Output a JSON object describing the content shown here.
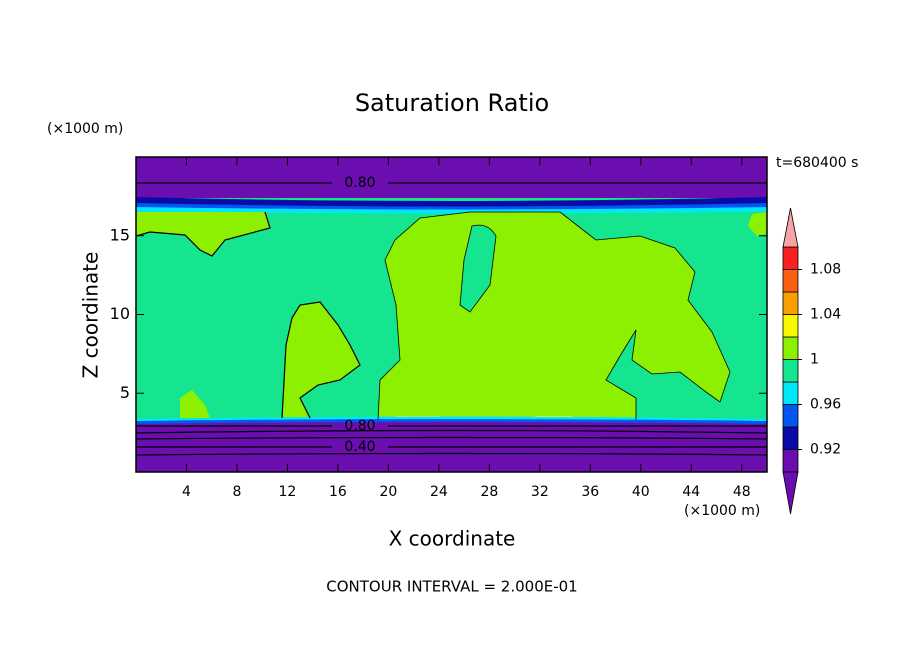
{
  "chart_data": {
    "type": "contour",
    "title": "Saturation Ratio",
    "x_label": "X coordinate",
    "y_label": "Z coordinate",
    "x_unit": "(×1000 m)",
    "y_unit": "(×1000 m)",
    "time_label": "t=680400 s",
    "footer": "CONTOUR INTERVAL = 2.000E-01",
    "xlim": [
      0,
      50
    ],
    "xticks": [
      4,
      8,
      12,
      16,
      20,
      24,
      28,
      32,
      36,
      40,
      44,
      48
    ],
    "ylim": [
      0,
      20
    ],
    "yticks": [
      5,
      10,
      15
    ],
    "contour_labels": [
      {
        "value": 0.8,
        "label": "0.80"
      },
      {
        "value": 0.8,
        "label": "0.80"
      },
      {
        "value": 0.4,
        "label": "0.40"
      }
    ],
    "colorbar": {
      "bounds": [
        0.9,
        1.1
      ],
      "ticks": [
        0.92,
        0.96,
        1,
        1.04,
        1.08
      ],
      "colors": [
        "#6a0eb0",
        "#0a0aa6",
        "#0058f0",
        "#00e8f8",
        "#14e58e",
        "#8cf000",
        "#f8f800",
        "#f8a000",
        "#f86010",
        "#f82020"
      ],
      "under_color": "#6a0eb0",
      "over_color": "#f4a4a4"
    }
  }
}
